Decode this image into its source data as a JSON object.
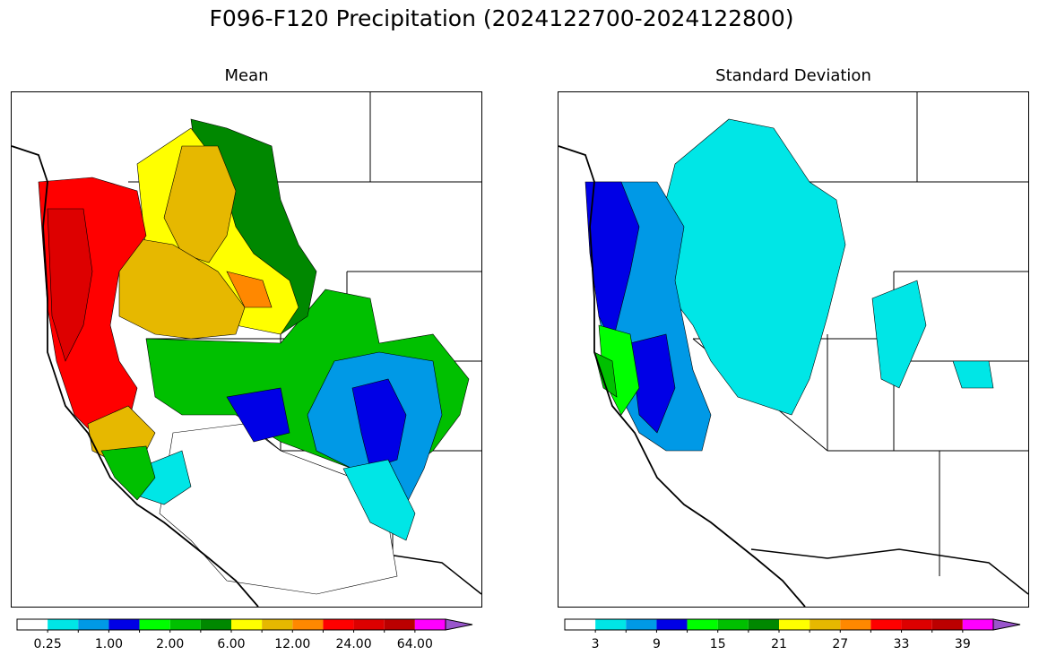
{
  "title": "F096-F120 Precipitation (2024122700-2024122800)",
  "panels": [
    {
      "subtitle": "Mean",
      "colorbar": {
        "colors": [
          "#ffffff",
          "#00e6e6",
          "#0099e6",
          "#0000e6",
          "#00ff00",
          "#00c000",
          "#008800",
          "#ffff00",
          "#e6b800",
          "#ff8800",
          "#ff0000",
          "#dd0000",
          "#bb0000",
          "#ff00ff",
          "#9955cc"
        ],
        "tick_labels": [
          "0.25",
          "1.00",
          "2.00",
          "6.00",
          "12.00",
          "24.00",
          "64.00"
        ],
        "extend": "max"
      }
    },
    {
      "subtitle": "Standard Deviation",
      "colorbar": {
        "colors": [
          "#ffffff",
          "#00e6e6",
          "#0099e6",
          "#0000e6",
          "#00ff00",
          "#00c000",
          "#008800",
          "#ffff00",
          "#e6b800",
          "#ff8800",
          "#ff0000",
          "#dd0000",
          "#bb0000",
          "#ff00ff",
          "#9955cc"
        ],
        "tick_labels": [
          "3",
          "9",
          "15",
          "21",
          "27",
          "33",
          "39"
        ],
        "extend": "max"
      }
    }
  ]
}
